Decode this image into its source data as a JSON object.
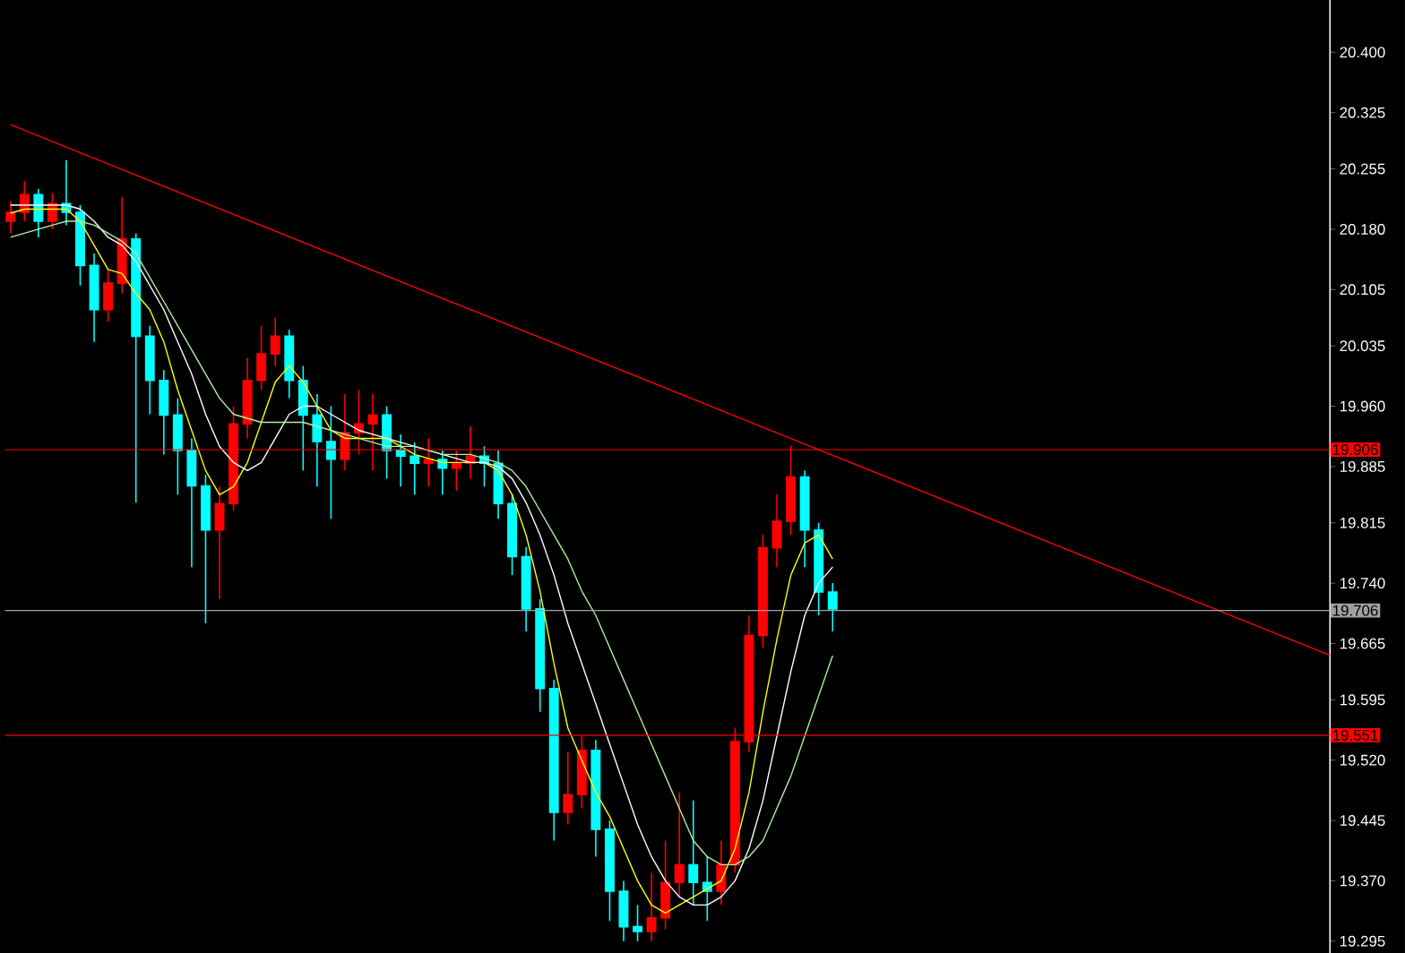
{
  "chart_data": {
    "type": "candlestick",
    "categories": [
      null,
      null,
      null,
      null,
      null,
      null,
      null,
      null,
      null,
      null,
      null,
      null,
      null,
      null,
      null,
      null,
      null,
      null,
      null,
      null,
      null,
      null,
      null,
      null,
      null,
      null,
      null,
      null,
      null,
      null,
      null,
      null,
      null,
      null,
      null,
      null,
      null,
      null,
      null,
      null,
      null,
      null,
      null,
      null,
      null,
      null,
      null,
      null,
      null,
      null,
      null,
      null,
      null,
      null,
      null,
      null,
      null,
      null,
      null,
      null
    ],
    "ohlc": [
      [
        20.19,
        20.215,
        20.175,
        20.201
      ],
      [
        20.201,
        20.24,
        20.19,
        20.223
      ],
      [
        20.223,
        20.23,
        20.17,
        20.19
      ],
      [
        20.19,
        20.225,
        20.18,
        20.212
      ],
      [
        20.212,
        20.266,
        20.185,
        20.201
      ],
      [
        20.201,
        20.21,
        20.11,
        20.135
      ],
      [
        20.135,
        20.15,
        20.04,
        20.08
      ],
      [
        20.08,
        20.13,
        20.065,
        20.113
      ],
      [
        20.113,
        20.22,
        20.1,
        20.168
      ],
      [
        20.168,
        20.175,
        19.84,
        20.047
      ],
      [
        20.047,
        20.06,
        19.95,
        19.992
      ],
      [
        19.992,
        20.005,
        19.9,
        19.949
      ],
      [
        19.949,
        19.97,
        19.85,
        19.905
      ],
      [
        19.905,
        19.92,
        19.76,
        19.861
      ],
      [
        19.861,
        19.875,
        19.69,
        19.806
      ],
      [
        19.806,
        19.86,
        19.72,
        19.839
      ],
      [
        19.839,
        19.96,
        19.83,
        19.938
      ],
      [
        19.938,
        20.02,
        19.92,
        19.992
      ],
      [
        19.992,
        20.06,
        19.98,
        20.025
      ],
      [
        20.025,
        20.07,
        20.01,
        20.047
      ],
      [
        20.047,
        20.055,
        19.97,
        19.992
      ],
      [
        19.992,
        20.01,
        19.88,
        19.949
      ],
      [
        19.949,
        19.975,
        19.86,
        19.916
      ],
      [
        19.916,
        19.96,
        19.82,
        19.894
      ],
      [
        19.894,
        19.975,
        19.88,
        19.927
      ],
      [
        19.927,
        19.98,
        19.9,
        19.938
      ],
      [
        19.938,
        19.975,
        19.88,
        19.949
      ],
      [
        19.949,
        19.96,
        19.87,
        19.905
      ],
      [
        19.905,
        19.925,
        19.86,
        19.898
      ],
      [
        19.898,
        19.915,
        19.85,
        19.889
      ],
      [
        19.889,
        19.92,
        19.86,
        19.894
      ],
      [
        19.894,
        19.905,
        19.85,
        19.883
      ],
      [
        19.883,
        19.905,
        19.855,
        19.889
      ],
      [
        19.889,
        19.935,
        19.87,
        19.898
      ],
      [
        19.898,
        19.91,
        19.86,
        19.889
      ],
      [
        19.889,
        19.905,
        19.82,
        19.839
      ],
      [
        19.839,
        19.85,
        19.75,
        19.773
      ],
      [
        19.773,
        19.785,
        19.68,
        19.708
      ],
      [
        19.708,
        19.72,
        19.58,
        19.609
      ],
      [
        19.609,
        19.62,
        19.42,
        19.455
      ],
      [
        19.455,
        19.53,
        19.44,
        19.477
      ],
      [
        19.477,
        19.55,
        19.46,
        19.532
      ],
      [
        19.532,
        19.545,
        19.4,
        19.434
      ],
      [
        19.434,
        19.445,
        19.32,
        19.357
      ],
      [
        19.357,
        19.37,
        19.295,
        19.313
      ],
      [
        19.313,
        19.34,
        19.295,
        19.307
      ],
      [
        19.307,
        19.38,
        19.295,
        19.324
      ],
      [
        19.324,
        19.42,
        19.31,
        19.368
      ],
      [
        19.368,
        19.48,
        19.35,
        19.39
      ],
      [
        19.39,
        19.47,
        19.34,
        19.368
      ],
      [
        19.368,
        19.4,
        19.32,
        19.357
      ],
      [
        19.357,
        19.42,
        19.34,
        19.39
      ],
      [
        19.39,
        19.56,
        19.38,
        19.543
      ],
      [
        19.543,
        19.7,
        19.53,
        19.675
      ],
      [
        19.675,
        19.8,
        19.66,
        19.784
      ],
      [
        19.784,
        19.85,
        19.76,
        19.817
      ],
      [
        19.817,
        19.911,
        19.8,
        19.872
      ],
      [
        19.872,
        19.88,
        19.76,
        19.806
      ],
      [
        19.806,
        19.815,
        19.7,
        19.729
      ],
      [
        19.729,
        19.74,
        19.68,
        19.708
      ]
    ],
    "colors": [
      "#ff0000",
      "#ff0000",
      "#00ffff",
      "#ff0000",
      "#00ffff",
      "#00ffff",
      "#00ffff",
      "#ff0000",
      "#ff0000",
      "#00ffff",
      "#00ffff",
      "#00ffff",
      "#00ffff",
      "#00ffff",
      "#00ffff",
      "#ff0000",
      "#ff0000",
      "#ff0000",
      "#ff0000",
      "#ff0000",
      "#00ffff",
      "#00ffff",
      "#00ffff",
      "#00ffff",
      "#ff0000",
      "#ff0000",
      "#ff0000",
      "#00ffff",
      "#00ffff",
      "#00ffff",
      "#ff0000",
      "#00ffff",
      "#ff0000",
      "#ff0000",
      "#00ffff",
      "#00ffff",
      "#00ffff",
      "#00ffff",
      "#00ffff",
      "#00ffff",
      "#ff0000",
      "#ff0000",
      "#00ffff",
      "#00ffff",
      "#00ffff",
      "#00ffff",
      "#ff0000",
      "#ff0000",
      "#ff0000",
      "#00ffff",
      "#00ffff",
      "#ff0000",
      "#ff0000",
      "#ff0000",
      "#ff0000",
      "#ff0000",
      "#ff0000",
      "#00ffff",
      "#00ffff",
      "#00ffff"
    ],
    "series": [
      {
        "type": "line",
        "color": "#ffff00",
        "values": [
          20.2,
          20.205,
          20.205,
          20.205,
          20.205,
          20.19,
          20.16,
          20.13,
          20.125,
          20.1,
          20.08,
          20.04,
          19.98,
          19.93,
          19.88,
          19.85,
          19.86,
          19.89,
          19.94,
          19.99,
          20.01,
          19.99,
          19.96,
          19.93,
          19.92,
          19.92,
          19.92,
          19.92,
          19.91,
          19.9,
          19.895,
          19.89,
          19.89,
          19.89,
          19.89,
          19.88,
          19.85,
          19.8,
          19.73,
          19.64,
          19.56,
          19.52,
          19.48,
          19.45,
          19.41,
          19.37,
          19.34,
          19.33,
          19.34,
          19.35,
          19.36,
          19.37,
          19.41,
          19.48,
          19.58,
          19.67,
          19.75,
          19.79,
          19.8,
          19.77
        ]
      },
      {
        "type": "line",
        "color": "#ffffff",
        "values": [
          20.21,
          20.21,
          20.21,
          20.21,
          20.21,
          20.205,
          20.19,
          20.17,
          20.16,
          20.14,
          20.11,
          20.08,
          20.04,
          20.0,
          19.95,
          19.91,
          19.89,
          19.88,
          19.89,
          19.92,
          19.95,
          19.96,
          19.96,
          19.95,
          19.94,
          19.93,
          19.925,
          19.92,
          19.915,
          19.91,
          19.905,
          19.9,
          19.895,
          19.89,
          19.89,
          19.885,
          19.87,
          19.84,
          19.8,
          19.75,
          19.69,
          19.64,
          19.59,
          19.54,
          19.49,
          19.44,
          19.4,
          19.37,
          19.35,
          19.34,
          19.34,
          19.35,
          19.37,
          19.41,
          19.47,
          19.55,
          19.63,
          19.7,
          19.74,
          19.76
        ]
      },
      {
        "type": "line",
        "color": "#b0f0a0",
        "values": [
          20.17,
          20.175,
          20.18,
          20.185,
          20.19,
          20.19,
          20.185,
          20.175,
          20.165,
          20.15,
          20.12,
          20.09,
          20.06,
          20.03,
          20.0,
          19.97,
          19.95,
          19.945,
          19.94,
          19.94,
          19.94,
          19.94,
          19.935,
          19.93,
          19.925,
          19.92,
          19.915,
          19.91,
          19.91,
          19.91,
          19.905,
          19.9,
          19.9,
          19.9,
          19.895,
          19.89,
          19.88,
          19.86,
          19.83,
          19.8,
          19.77,
          19.73,
          19.7,
          19.66,
          19.62,
          19.58,
          19.54,
          19.5,
          19.46,
          19.42,
          19.4,
          19.39,
          19.39,
          19.4,
          19.42,
          19.46,
          19.5,
          19.55,
          19.6,
          19.65
        ]
      },
      {
        "type": "line",
        "color": "#ff0000",
        "values": [
          20.31,
          null,
          null,
          null,
          null,
          null,
          null,
          null,
          null,
          null,
          null,
          null,
          null,
          null,
          null,
          null,
          null,
          null,
          null,
          null,
          null,
          null,
          null,
          null,
          null,
          null,
          null,
          null,
          null,
          null,
          null,
          null,
          null,
          null,
          null,
          null,
          null,
          null,
          null,
          null,
          null,
          null,
          null,
          null,
          null,
          null,
          null,
          null,
          null,
          null,
          null,
          null,
          null,
          null,
          null,
          null,
          null,
          null,
          null,
          19.899
        ]
      }
    ],
    "ylim": [
      19.28,
      20.465
    ],
    "yticks": [
      {
        "value": 20.4,
        "label": "20.400"
      },
      {
        "value": 20.325,
        "label": "20.325"
      },
      {
        "value": 20.255,
        "label": "20.255"
      },
      {
        "value": 20.18,
        "label": "20.180"
      },
      {
        "value": 20.105,
        "label": "20.105"
      },
      {
        "value": 20.035,
        "label": "20.035"
      },
      {
        "value": 19.96,
        "label": "19.960"
      },
      {
        "value": 19.885,
        "label": "19.885"
      },
      {
        "value": 19.815,
        "label": "19.815"
      },
      {
        "value": 19.74,
        "label": "19.740"
      },
      {
        "value": 19.665,
        "label": "19.665"
      },
      {
        "value": 19.595,
        "label": "19.595"
      },
      {
        "value": 19.52,
        "label": "19.520"
      },
      {
        "value": 19.445,
        "label": "19.445"
      },
      {
        "value": 19.37,
        "label": "19.370"
      },
      {
        "value": 19.295,
        "label": "19.295"
      }
    ],
    "ref_lines": [
      {
        "axis": "y",
        "value": 19.906,
        "label": "19.906",
        "color": "#ff0000"
      },
      {
        "axis": "y",
        "value": 19.706,
        "label": "19.706",
        "color": "#a0a0a0"
      },
      {
        "axis": "y",
        "value": 19.551,
        "label": "19.551",
        "color": "#ff0000"
      }
    ],
    "tick_labels": "y"
  }
}
